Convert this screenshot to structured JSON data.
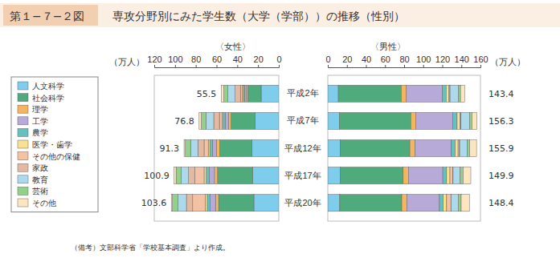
{
  "chart_data": [
    {
      "type": "bar",
      "orientation": "horizontal",
      "stacked": true,
      "figure_label": "第１−７−２図",
      "title": "専攻分野別にみた学生数（大学（学部））の推移（性別）",
      "subtitle": "〈女性〉",
      "x_label": "（万人）",
      "note": "（備考）文部科学省「学校基本調査」より作成。",
      "categories": [
        "平成2年",
        "平成7年",
        "平成12年",
        "平成17年",
        "平成20年"
      ],
      "xlim": [
        0,
        120
      ],
      "xticks": [
        0,
        20,
        40,
        60,
        80,
        100,
        120
      ],
      "totals": [
        55.5,
        76.8,
        91.3,
        100.9,
        103.6
      ],
      "series": [
        {
          "name": "人文科学",
          "color": "#7fcdec",
          "values": [
            17,
            23,
            26,
            25,
            24
          ]
        },
        {
          "name": "社会科学",
          "color": "#4fab7c",
          "values": [
            13,
            23,
            31,
            34,
            34
          ]
        },
        {
          "name": "理学",
          "color": "#f5b45e",
          "values": [
            1.5,
            2.5,
            3,
            3,
            3
          ]
        },
        {
          "name": "工学",
          "color": "#b7a9d8",
          "values": [
            1.5,
            3,
            4,
            5,
            5
          ]
        },
        {
          "name": "農学",
          "color": "#62c2c0",
          "values": [
            1.2,
            2,
            2.5,
            3,
            3
          ]
        },
        {
          "name": "医学・歯学",
          "color": "#f8e18f",
          "values": [
            0.8,
            1.2,
            1.5,
            2,
            2
          ]
        },
        {
          "name": "その他の保健",
          "color": "#f3c2a4",
          "values": [
            2,
            2.5,
            4,
            9,
            12
          ]
        },
        {
          "name": "家政",
          "color": "#e3b9a2",
          "values": [
            5,
            5.5,
            6,
            6,
            6
          ]
        },
        {
          "name": "教育",
          "color": "#acdaec",
          "values": [
            7,
            7.5,
            7,
            7,
            8
          ]
        },
        {
          "name": "芸術",
          "color": "#93d08c",
          "values": [
            4,
            4.5,
            5,
            5,
            5.5
          ]
        },
        {
          "name": "その他",
          "color": "#fde6bf",
          "values": [
            2.5,
            2.1,
            1.3,
            1.9,
            1.1
          ]
        }
      ]
    },
    {
      "type": "bar",
      "orientation": "horizontal",
      "stacked": true,
      "subtitle": "〈男性〉",
      "x_label": "（万人）",
      "tick_labels": "x",
      "categories": [
        "平成2年",
        "平成7年",
        "平成12年",
        "平成17年",
        "平成20年"
      ],
      "xlim": [
        0,
        160
      ],
      "xticks": [
        0,
        20,
        40,
        60,
        80,
        100,
        120,
        140,
        160
      ],
      "totals": [
        143.4,
        156.3,
        155.9,
        149.9,
        148.4
      ],
      "series": [
        {
          "name": "人文科学",
          "color": "#7fcdec",
          "values": [
            11,
            12,
            13,
            13,
            12.5
          ]
        },
        {
          "name": "社会科学",
          "color": "#4fab7c",
          "values": [
            66,
            75,
            73,
            66,
            65
          ]
        },
        {
          "name": "理学",
          "color": "#f5b45e",
          "values": [
            5,
            5,
            5.5,
            5.5,
            5.5
          ]
        },
        {
          "name": "工学",
          "color": "#b7a9d8",
          "values": [
            38,
            39,
            38,
            36,
            34
          ]
        },
        {
          "name": "農学",
          "color": "#62c2c0",
          "values": [
            4,
            4.5,
            4,
            4,
            4
          ]
        },
        {
          "name": "医学・歯学",
          "color": "#f8e18f",
          "values": [
            3,
            3,
            3,
            3.5,
            3.5
          ]
        },
        {
          "name": "その他の保健",
          "color": "#f3c2a4",
          "values": [
            1,
            1,
            1.5,
            3,
            4.5
          ]
        },
        {
          "name": "家政",
          "color": "#e3b9a2",
          "values": [
            0.1,
            0.1,
            0.2,
            0.3,
            0.3
          ]
        },
        {
          "name": "教育",
          "color": "#acdaec",
          "values": [
            9,
            9,
            8,
            7.5,
            7.5
          ]
        },
        {
          "name": "芸術",
          "color": "#93d08c",
          "values": [
            2,
            2.5,
            2.5,
            3,
            3
          ]
        },
        {
          "name": "その他",
          "color": "#fde6bf",
          "values": [
            4.3,
            5.2,
            7.2,
            8.1,
            8.6
          ]
        }
      ]
    }
  ]
}
